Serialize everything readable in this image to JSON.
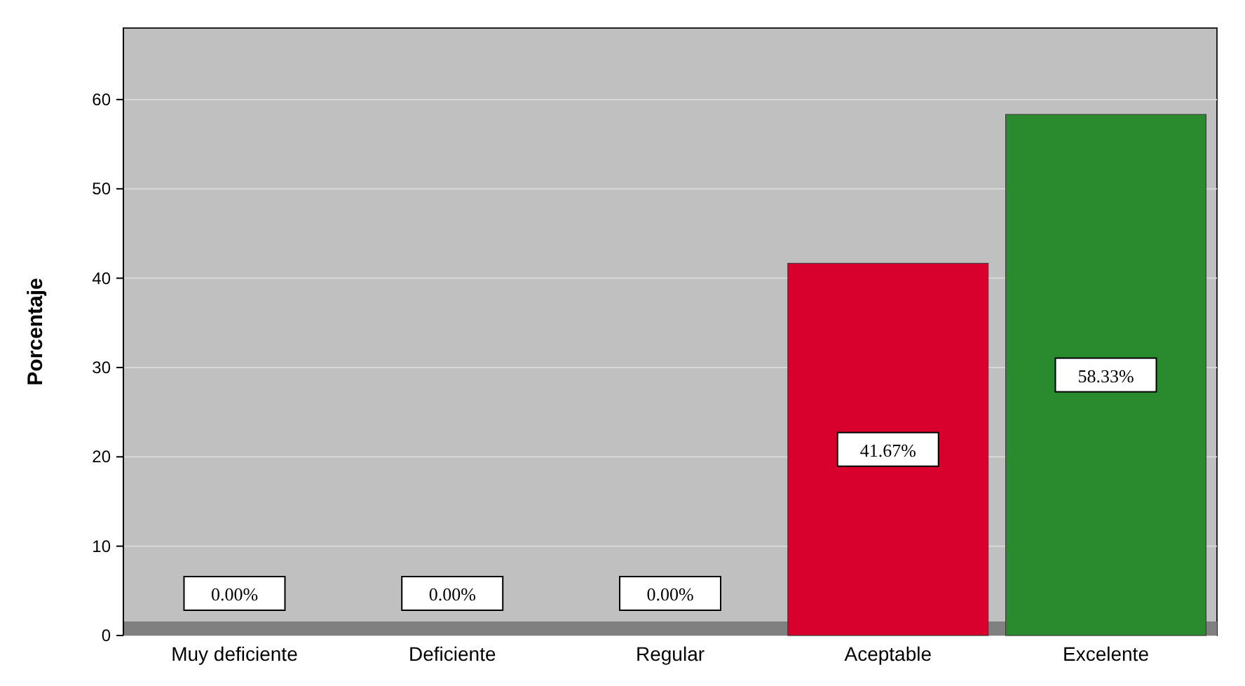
{
  "chart_data": {
    "type": "bar",
    "ylabel": "Porcentaje",
    "categories": [
      "Muy deficiente",
      "Deficiente",
      "Regular",
      "Aceptable",
      "Excelente"
    ],
    "values": [
      0,
      0,
      0,
      41.67,
      58.33
    ],
    "colors": [
      "#d0002a",
      "#d0002a",
      "#d0002a",
      "#d8002c",
      "#2a8a2e"
    ],
    "value_labels": [
      "0.00%",
      "0.00%",
      "0.00%",
      "41.67%",
      "58.33%"
    ],
    "ylim": [
      0,
      68
    ],
    "yticks": [
      0,
      10,
      20,
      30,
      40,
      50,
      60
    ],
    "grid": "y"
  }
}
